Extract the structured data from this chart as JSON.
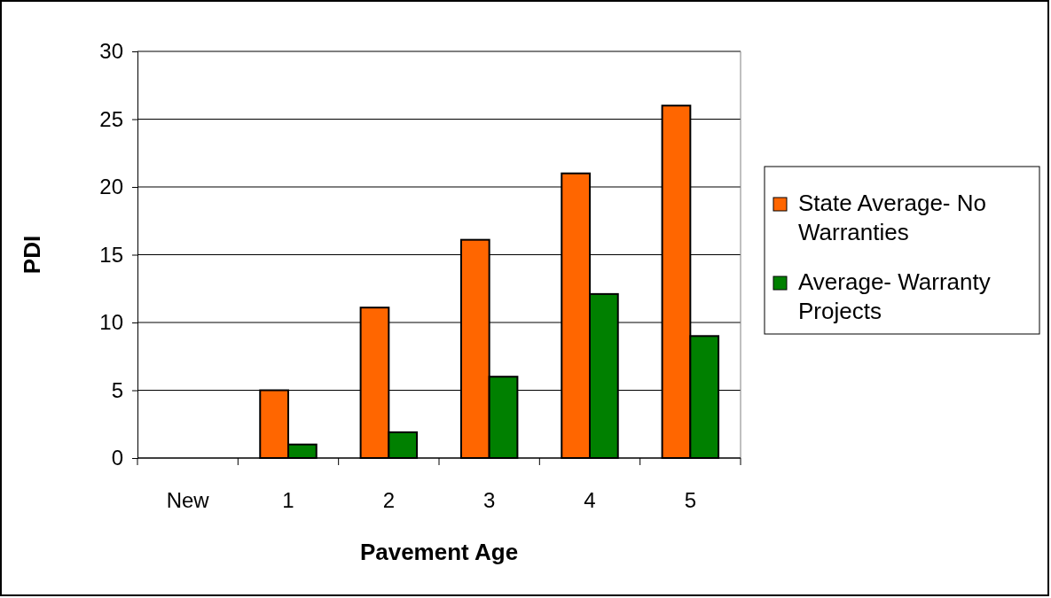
{
  "chart_data": {
    "type": "bar",
    "xlabel": "Pavement Age",
    "ylabel": "PDI",
    "categories": [
      "New",
      "1",
      "2",
      "3",
      "4",
      "5"
    ],
    "series": [
      {
        "name": "State Average- No Warranties",
        "color": "#ff6600",
        "values": [
          null,
          5,
          11.1,
          16.1,
          21,
          26
        ]
      },
      {
        "name": "Average- Warranty Projects",
        "color": "#008000",
        "values": [
          null,
          1,
          1.9,
          6,
          12.1,
          9
        ]
      }
    ],
    "ylim": [
      0,
      30
    ],
    "yticks": [
      0,
      5,
      10,
      15,
      20,
      25,
      30
    ],
    "grid": "y",
    "legend": "right"
  }
}
